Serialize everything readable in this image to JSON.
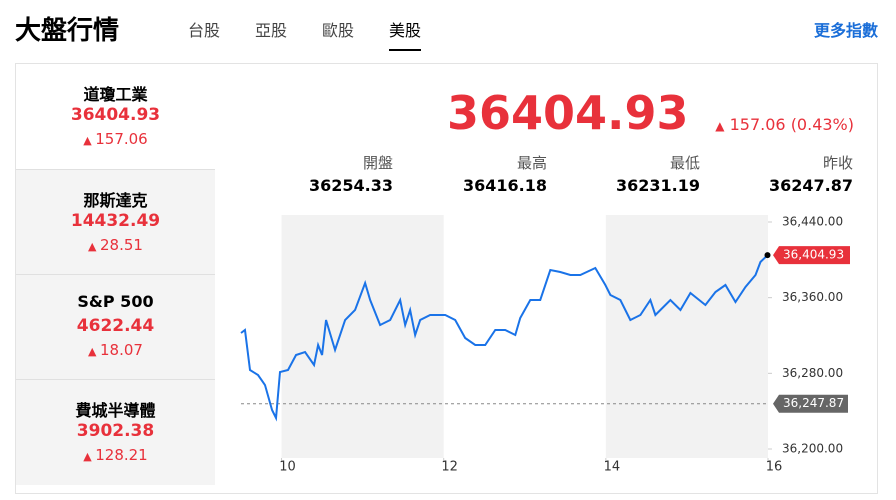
{
  "header": {
    "title": "大盤行情",
    "tabs": [
      "台股",
      "亞股",
      "歐股",
      "美股"
    ],
    "active_tab": 3,
    "more_link": "更多指數"
  },
  "indices": [
    {
      "name": "道瓊工業",
      "value": 36404.93,
      "change": 157.06
    },
    {
      "name": "那斯達克",
      "value": 14432.49,
      "change": 28.51
    },
    {
      "name": "S&P 500",
      "value": 4622.44,
      "change": 18.07
    },
    {
      "name": "費城半導體",
      "value": 3902.38,
      "change": 128.21
    }
  ],
  "quote": {
    "price": 36404.93,
    "change": 157.06,
    "change_pct": "(0.43%)",
    "stats": [
      {
        "label": "開盤",
        "value": 36254.33
      },
      {
        "label": "最高",
        "value": 36416.18
      },
      {
        "label": "最低",
        "value": 36231.19
      },
      {
        "label": "昨收",
        "value": 36247.87
      }
    ]
  },
  "chart_data": {
    "type": "line",
    "color": "#1a73e8",
    "x": [
      9.5,
      9.549,
      9.611,
      9.71,
      9.796,
      9.883,
      9.932,
      9.981,
      10.08,
      10.179,
      10.29,
      10.401,
      10.451,
      10.5,
      10.549,
      10.66,
      10.784,
      10.907,
      11.031,
      11.093,
      11.216,
      11.34,
      11.463,
      11.525,
      11.586,
      11.648,
      11.71,
      11.833,
      12.019,
      12.142,
      12.265,
      12.389,
      12.512,
      12.636,
      12.759,
      12.883,
      12.944,
      13.068,
      13.191,
      13.315,
      13.438,
      13.562,
      13.685,
      13.87,
      13.994,
      14.056,
      14.179,
      14.302,
      14.426,
      14.549,
      14.611,
      14.796,
      14.92,
      15.043,
      15.228,
      15.352,
      15.475,
      15.599,
      15.722,
      15.846,
      15.907,
      15.994
    ],
    "values": [
      36322.64,
      36325.81,
      36283.52,
      36278.23,
      36267.66,
      36241.23,
      36232.77,
      36281.4,
      36283.52,
      36299.38,
      36302.55,
      36288.81,
      36309.95,
      36299.38,
      36336.38,
      36304.67,
      36336.38,
      36346.96,
      36375.5,
      36357.53,
      36331.1,
      36336.38,
      36357.53,
      36331.1,
      36346.96,
      36320.53,
      36336.38,
      36341.67,
      36341.67,
      36336.38,
      36317.35,
      36309.95,
      36309.95,
      36325.81,
      36325.81,
      36320.53,
      36338.5,
      36357.53,
      36357.53,
      36389.25,
      36387.13,
      36383.96,
      36383.96,
      36391.36,
      36373.39,
      36362.82,
      36357.53,
      36336.38,
      36341.67,
      36357.53,
      36341.67,
      36357.53,
      36346.96,
      36364.93,
      36352.24,
      36365.99,
      36373.39,
      36355.42,
      36371.28,
      36383.96,
      36397.71,
      36404.93
    ],
    "xlim": [
      9.5,
      16
    ],
    "xticks": [
      10,
      12,
      14,
      16
    ],
    "ylim": [
      36200,
      36440
    ],
    "yticks": [
      {
        "value": 36200,
        "label": "36,200.00"
      },
      {
        "value": 36280,
        "label": "36,280.00"
      },
      {
        "value": 36360,
        "label": "36,360.00"
      },
      {
        "value": 36440,
        "label": "36,440.00"
      }
    ],
    "reference_line": {
      "value": 36247.87,
      "label": "36,247.87"
    },
    "last_label": {
      "value": 36404.93,
      "label": "36,404.93"
    }
  }
}
